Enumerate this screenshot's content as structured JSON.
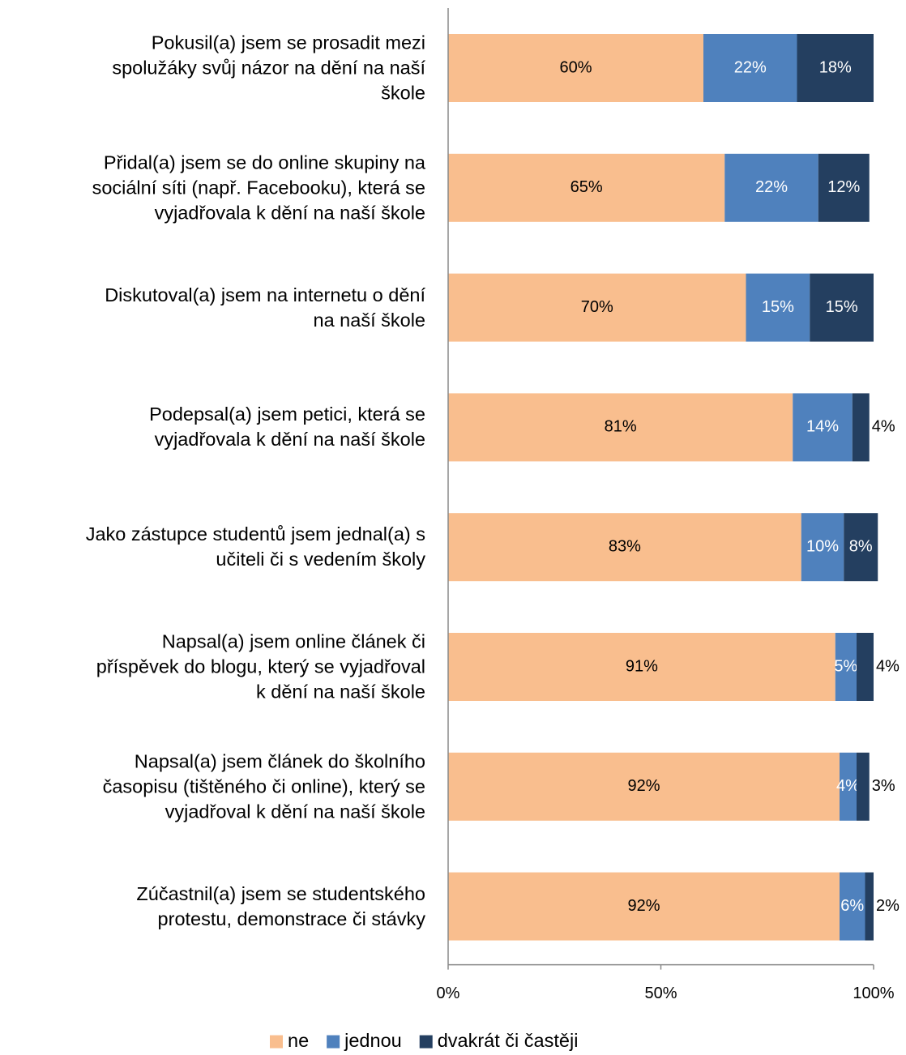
{
  "chart_data": {
    "type": "stacked_barh",
    "categories": [
      "Pokusil(a) jsem se prosadit mezi\nspolužáky svůj názor na dění na naší\nškole",
      "Přidal(a) jsem se do online skupiny na\nsociální síti (např. Facebooku), která se\nvyjadřovala k dění na naší škole",
      "Diskutoval(a) jsem na internetu o dění\nna naší škole",
      "Podepsal(a) jsem petici, která se\nvyjadřovala k dění na naší škole",
      "Jako zástupce studentů jsem jednal(a) s\nučiteli či s vedením školy",
      "Napsal(a) jsem online článek či\npříspěvek do blogu, který se vyjadřoval\nk dění na naší škole",
      "Napsal(a) jsem článek do školního\nčasopisu (tištěného či online), který se\nvyjadřoval k dění na naší škole",
      "Zúčastnil(a) jsem se studentského\nprotestu, demonstrace či stávky"
    ],
    "series": [
      {
        "name": "ne",
        "color": "#f9be8e",
        "values": [
          60,
          65,
          70,
          81,
          83,
          91,
          92,
          92
        ],
        "value_labels": [
          "60%",
          "65%",
          "70%",
          "81%",
          "83%",
          "91%",
          "92%",
          "92%"
        ]
      },
      {
        "name": "jednou",
        "color": "#4f81bd",
        "values": [
          22,
          22,
          15,
          14,
          10,
          5,
          4,
          6
        ],
        "value_labels": [
          "22%",
          "22%",
          "15%",
          "14%",
          "10%",
          "5%",
          "4%",
          "6%"
        ]
      },
      {
        "name": "dvakrát či častěji",
        "color": "#243f60",
        "values": [
          18,
          12,
          15,
          4,
          8,
          4,
          3,
          2
        ],
        "value_labels": [
          "18%",
          "12%",
          "15%",
          "4%",
          "8%",
          "4%",
          "3%",
          "2%"
        ]
      }
    ],
    "xlim": [
      0,
      100
    ],
    "xticks": [
      {
        "value": 0,
        "label": "0%"
      },
      {
        "value": 50,
        "label": "50%"
      },
      {
        "value": 100,
        "label": "100%"
      }
    ],
    "legend": "bottom"
  }
}
